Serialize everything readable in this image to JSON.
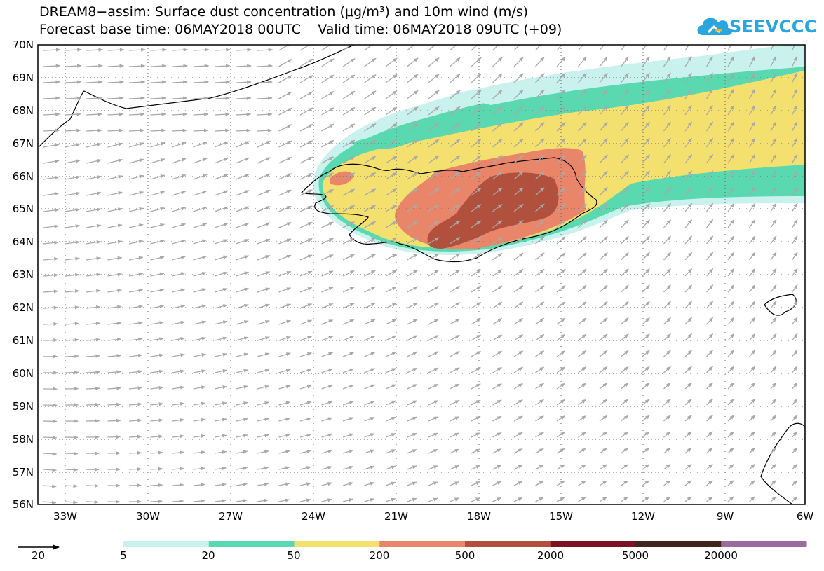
{
  "title": {
    "line1": "DREAM8−assim: Surface dust concentration (μg/m³) and 10m wind (m/s)",
    "line2": "Forecast base time: 06MAY2018 00UTC    Valid time: 06MAY2018 09UTC (+09)"
  },
  "logo": {
    "text": "SEEVCCC",
    "icon": "cloud-logo-icon",
    "color": "#2aa6df"
  },
  "map": {
    "lon_range": [
      -34.5,
      -6
    ],
    "lat_range": [
      56,
      70
    ],
    "lat_ticks": [
      "70N",
      "69N",
      "68N",
      "67N",
      "66N",
      "65N",
      "64N",
      "63N",
      "62N",
      "61N",
      "60N",
      "59N",
      "58N",
      "57N",
      "56N"
    ],
    "lon_ticks": [
      "33W",
      "30W",
      "27W",
      "24W",
      "21W",
      "18W",
      "15W",
      "12W",
      "9W",
      "6W"
    ],
    "grid": "dotted",
    "wind_arrow_color": "#a9a9a9",
    "coastline_color": "#000000"
  },
  "legend": {
    "reference_wind_label": "20",
    "reference_wind_icon": "arrow-right-icon",
    "colors": [
      "#c9f2ee",
      "#5ad9b0",
      "#f4e06e",
      "#e9866a",
      "#b2503e",
      "#7c1123",
      "#40261a",
      "#9b6a9e"
    ],
    "labels": [
      "5",
      "20",
      "50",
      "200",
      "500",
      "2000",
      "5000",
      "20000"
    ]
  }
}
